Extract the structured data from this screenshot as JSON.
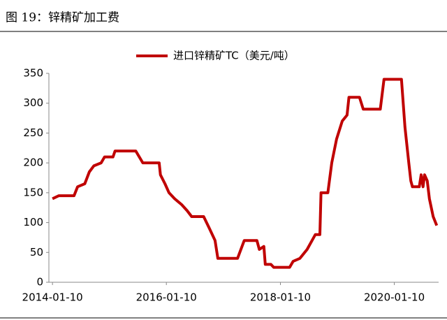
{
  "chart_data": {
    "type": "line",
    "title": "图 19：锌精矿加工费",
    "x": [
      "2014-01-10",
      "2014-02-20",
      "2014-05-28",
      "2014-06-20",
      "2014-08-05",
      "2014-09-03",
      "2014-10-02",
      "2014-11-18",
      "2014-12-10",
      "2015-02-02",
      "2015-02-15",
      "2015-06-28",
      "2015-08-12",
      "2015-11-25",
      "2015-12-03",
      "2016-01-01",
      "2016-01-27",
      "2016-03-03",
      "2016-04-17",
      "2016-05-22",
      "2016-06-20",
      "2016-09-05",
      "2016-10-12",
      "2016-11-17",
      "2016-12-05",
      "2017-04-10",
      "2017-05-23",
      "2017-08-12",
      "2017-08-28",
      "2017-09-26",
      "2017-10-05",
      "2017-11-10",
      "2017-11-28",
      "2018-03-10",
      "2018-04-01",
      "2018-05-15",
      "2018-06-30",
      "2018-08-01",
      "2018-08-22",
      "2018-09-20",
      "2018-09-27",
      "2018-11-10",
      "2018-12-05",
      "2019-01-05",
      "2019-02-10",
      "2019-03-13",
      "2019-03-25",
      "2019-06-01",
      "2019-06-25",
      "2019-10-12",
      "2019-11-05",
      "2020-02-25",
      "2020-03-18",
      "2020-04-12",
      "2020-04-25",
      "2020-05-05",
      "2020-06-18",
      "2020-06-30",
      "2020-07-12",
      "2020-07-22",
      "2020-08-08",
      "2020-08-22",
      "2020-09-15",
      "2020-10-08"
    ],
    "series": [
      {
        "name": "进口锌精矿TC（美元/吨）",
        "color": "#c00000",
        "values": [
          140,
          145,
          145,
          160,
          165,
          185,
          195,
          200,
          210,
          210,
          220,
          220,
          200,
          200,
          180,
          165,
          150,
          140,
          130,
          120,
          110,
          110,
          90,
          70,
          40,
          40,
          70,
          70,
          55,
          60,
          30,
          30,
          25,
          25,
          35,
          40,
          55,
          70,
          80,
          80,
          150,
          150,
          200,
          240,
          270,
          280,
          310,
          310,
          290,
          290,
          340,
          340,
          260,
          200,
          170,
          160,
          160,
          180,
          160,
          180,
          170,
          140,
          110,
          95
        ]
      }
    ],
    "xlim": [
      "2013-12-18",
      "2020-10-20"
    ],
    "xticks": [
      "2014-01-10",
      "2016-01-10",
      "2018-01-10",
      "2020-01-10"
    ],
    "ylim": [
      0,
      350
    ],
    "yticks": [
      0,
      50,
      100,
      150,
      200,
      250,
      300,
      350
    ],
    "legend": "top"
  }
}
